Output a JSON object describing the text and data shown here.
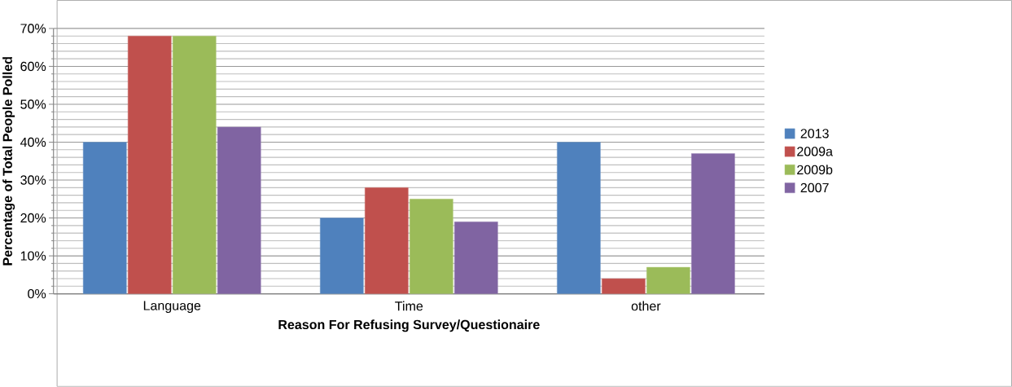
{
  "chart_data": {
    "type": "bar",
    "xlabel": "Reason For Refusing Survey/Questionaire",
    "ylabel": "Percentage of Total People Polled",
    "categories": [
      "Language",
      "Time",
      "other"
    ],
    "series": [
      {
        "name": "2013",
        "color": "#4f81bd",
        "values": [
          40,
          20,
          40
        ]
      },
      {
        "name": "2009a",
        "color": "#c0504d",
        "values": [
          68,
          28,
          4
        ]
      },
      {
        "name": "2009b",
        "color": "#9bbb59",
        "values": [
          68,
          25,
          7
        ]
      },
      {
        "name": "2007",
        "color": "#8064a2",
        "values": [
          44,
          19,
          37
        ]
      }
    ],
    "ylim": [
      0,
      70
    ],
    "yticks": [
      {
        "value": 0,
        "label": "0%"
      },
      {
        "value": 10,
        "label": "10%"
      },
      {
        "value": 20,
        "label": "20%"
      },
      {
        "value": 30,
        "label": "30%"
      },
      {
        "value": 40,
        "label": "40%"
      },
      {
        "value": 50,
        "label": "50%"
      },
      {
        "value": 60,
        "label": "60%"
      },
      {
        "value": 70,
        "label": "70%"
      }
    ],
    "grid": true,
    "legend": "right"
  }
}
